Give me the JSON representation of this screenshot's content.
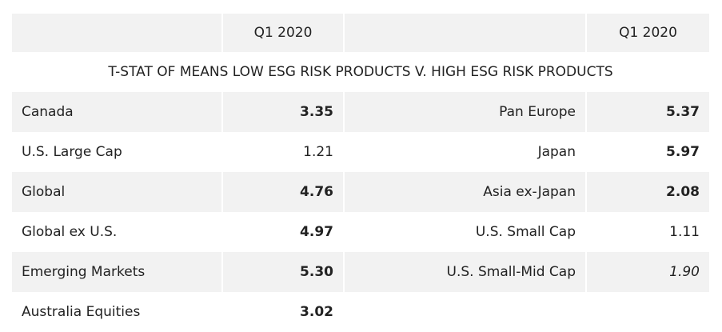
{
  "table": {
    "header": [
      "Q1 2020",
      "Q1 2020"
    ],
    "title": "T-STAT OF MEANS LOW ESG RISK PRODUCTS V. HIGH ESG RISK PRODUCTS",
    "rows": [
      [
        "Canada",
        "3.35",
        "Pan Europe",
        "5.37"
      ],
      [
        "U.S. Large Cap",
        "1.21",
        "Japan",
        "5.97"
      ],
      [
        "Global",
        "4.76",
        "Asia ex-Japan",
        "2.08"
      ],
      [
        "Global ex U.S.",
        "4.97",
        "U.S. Small Cap",
        "1.11"
      ],
      [
        "Emerging Markets",
        "5.30",
        "U.S. Small-Mid Cap",
        "1.90"
      ],
      [
        "Australia Equities",
        "3.02"
      ]
    ]
  }
}
